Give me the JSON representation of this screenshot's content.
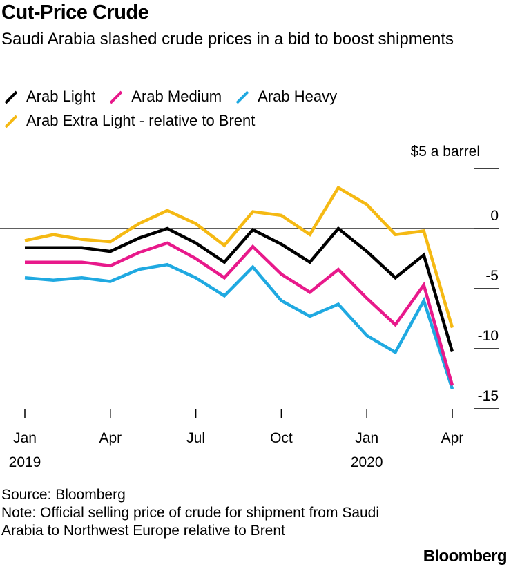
{
  "title": "Cut-Price Crude",
  "subtitle": "Saudi Arabia slashed crude prices in a bid to boost shipments",
  "source": "Source: Bloomberg",
  "note": "Note: Official selling price of crude for shipment from Saudi Arabia to Northwest Europe relative to Brent",
  "logo": "Bloomberg",
  "colors": {
    "text": "#000000",
    "zero_line": "#000000"
  },
  "chart_data": {
    "type": "line",
    "title": "Cut-Price Crude",
    "subtitle": "Saudi Arabia slashed crude prices in a bid to boost shipments",
    "y_unit_label": "$5 a barrel",
    "x": [
      "2019-01",
      "2019-02",
      "2019-03",
      "2019-04",
      "2019-05",
      "2019-06",
      "2019-07",
      "2019-08",
      "2019-09",
      "2019-10",
      "2019-11",
      "2019-12",
      "2020-01",
      "2020-02",
      "2020-03",
      "2020-04"
    ],
    "x_ticks": [
      {
        "x": "2019-01",
        "label": "Jan",
        "year": "2019"
      },
      {
        "x": "2019-04",
        "label": "Apr",
        "year": ""
      },
      {
        "x": "2019-07",
        "label": "Jul",
        "year": ""
      },
      {
        "x": "2019-10",
        "label": "Oct",
        "year": ""
      },
      {
        "x": "2020-01",
        "label": "Jan",
        "year": "2020"
      },
      {
        "x": "2020-04",
        "label": "Apr",
        "year": ""
      }
    ],
    "y_ticks": [
      {
        "value": 5,
        "label": ""
      },
      {
        "value": 0,
        "label": "0"
      },
      {
        "value": -5,
        "label": "-5"
      },
      {
        "value": -10,
        "label": "-10"
      },
      {
        "value": -15,
        "label": "-15"
      }
    ],
    "ylim": [
      -15.5,
      7
    ],
    "zero_line": true,
    "legend_position": "top",
    "series": [
      {
        "name": "Arab Light",
        "color": "#000000",
        "values": [
          -1.6,
          -1.6,
          -1.6,
          -1.9,
          -0.8,
          0.0,
          -1.2,
          -2.8,
          -0.1,
          -1.3,
          -2.8,
          0.0,
          -1.9,
          -4.1,
          -2.2,
          -10.25
        ]
      },
      {
        "name": "Arab Medium",
        "color": "#e8198b",
        "values": [
          -2.8,
          -2.8,
          -2.8,
          -3.1,
          -2.0,
          -1.2,
          -2.5,
          -4.1,
          -1.5,
          -3.8,
          -5.3,
          -3.4,
          -5.8,
          -8.0,
          -4.7,
          -13.05
        ]
      },
      {
        "name": "Arab Heavy",
        "color": "#1fa9e1",
        "values": [
          -4.1,
          -4.3,
          -4.1,
          -4.4,
          -3.4,
          -3.0,
          -4.1,
          -5.6,
          -3.2,
          -6.0,
          -7.3,
          -6.3,
          -8.9,
          -10.3,
          -6.0,
          -13.35
        ]
      },
      {
        "name": "Arab Extra Light - relative to Brent",
        "color": "#f5b913",
        "values": [
          -1.0,
          -0.5,
          -0.9,
          -1.1,
          0.4,
          1.5,
          0.4,
          -1.4,
          1.4,
          1.1,
          -0.5,
          3.4,
          2.0,
          -0.5,
          -0.2,
          -8.25
        ]
      }
    ]
  }
}
